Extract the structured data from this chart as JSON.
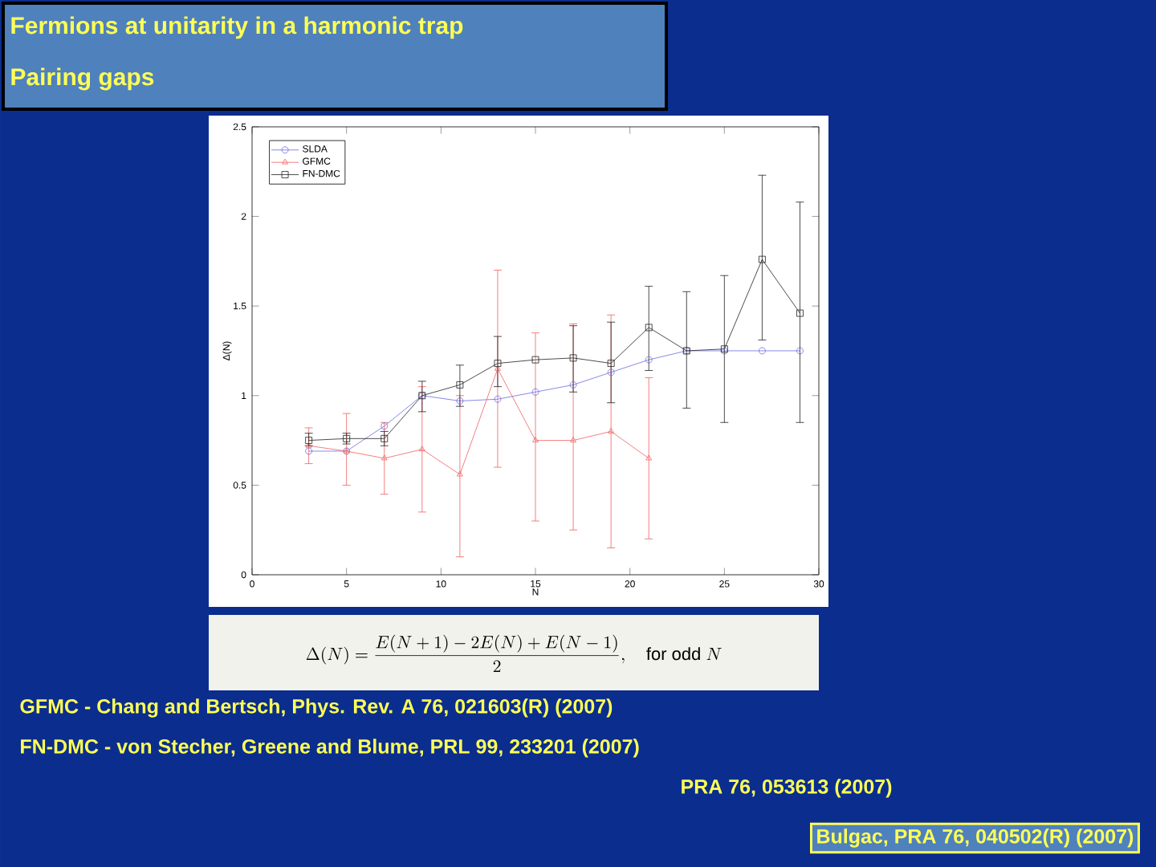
{
  "chart_data": {
    "type": "line",
    "title": "Fermions at unitarity in a harmonic trap",
    "subtitle": "Pairing gaps",
    "xlabel": "N",
    "ylabel": "Δ(N)",
    "x": [
      3,
      5,
      7,
      9,
      11,
      13,
      15,
      17,
      19,
      21,
      23,
      25,
      27,
      29
    ],
    "series": [
      {
        "name": "SLDA",
        "color": "#6b6be0",
        "marker": "circle",
        "values": [
          0.69,
          0.69,
          0.83,
          1.0,
          0.97,
          0.98,
          1.02,
          1.06,
          1.13,
          1.2,
          1.25,
          1.25,
          1.25,
          1.25
        ]
      },
      {
        "name": "GFMC",
        "color": "#f06060",
        "marker": "triangle",
        "x": [
          3,
          5,
          7,
          9,
          11,
          13,
          15,
          17,
          19,
          21
        ],
        "values": [
          0.72,
          0.69,
          0.65,
          0.7,
          0.56,
          1.15,
          0.75,
          0.75,
          0.8,
          0.65
        ],
        "errors": [
          [
            0.62,
            0.82
          ],
          [
            0.5,
            0.9
          ],
          [
            0.45,
            0.85
          ],
          [
            0.35,
            1.05
          ],
          [
            0.1,
            1.0
          ],
          [
            0.6,
            1.7
          ],
          [
            0.3,
            1.35
          ],
          [
            0.25,
            1.4
          ],
          [
            0.15,
            1.45
          ],
          [
            0.2,
            1.1
          ]
        ]
      },
      {
        "name": "FN-DMC",
        "color": "#202020",
        "marker": "square",
        "values": [
          0.75,
          0.76,
          0.76,
          1.0,
          1.06,
          1.18,
          1.2,
          1.21,
          1.18,
          1.38,
          1.25,
          1.26,
          1.76,
          1.46
        ],
        "errors": [
          [
            0.72,
            0.79
          ],
          [
            0.73,
            0.79
          ],
          [
            0.72,
            0.8
          ],
          [
            0.91,
            1.08
          ],
          [
            0.94,
            1.17
          ],
          [
            1.05,
            1.33
          ],
          null,
          [
            1.02,
            1.39
          ],
          [
            0.96,
            1.41
          ],
          [
            1.14,
            1.61
          ],
          [
            0.93,
            1.58
          ],
          [
            0.85,
            1.67
          ],
          [
            1.31,
            2.23
          ],
          [
            0.85,
            2.08
          ]
        ]
      }
    ],
    "xlim": [
      0,
      30
    ],
    "xticks": [
      0,
      5,
      10,
      15,
      20,
      25,
      30
    ],
    "ylim": [
      0,
      2.5
    ],
    "yticks": [
      0,
      0.5,
      1,
      1.5,
      2,
      2.5
    ],
    "legend": "top left",
    "grid": false,
    "line_style": "solid",
    "annotations": [
      "\\Delta(N) = \\frac{E(N+1)-2E(N)+E(N-1)}{2},\\quad \\mbox{for odd } N",
      "GFMC     - Chang and Bertsch, Phys. Rev. A 76, 021603(R) (2007)",
      "FN-DMC - von Stecher, Greene and Blume, PRL 99, 233201 (2007)",
      "PRA 76, 053613 (2007)",
      "Bulgac, PRA  76, 040502(R) (2007)"
    ]
  }
}
